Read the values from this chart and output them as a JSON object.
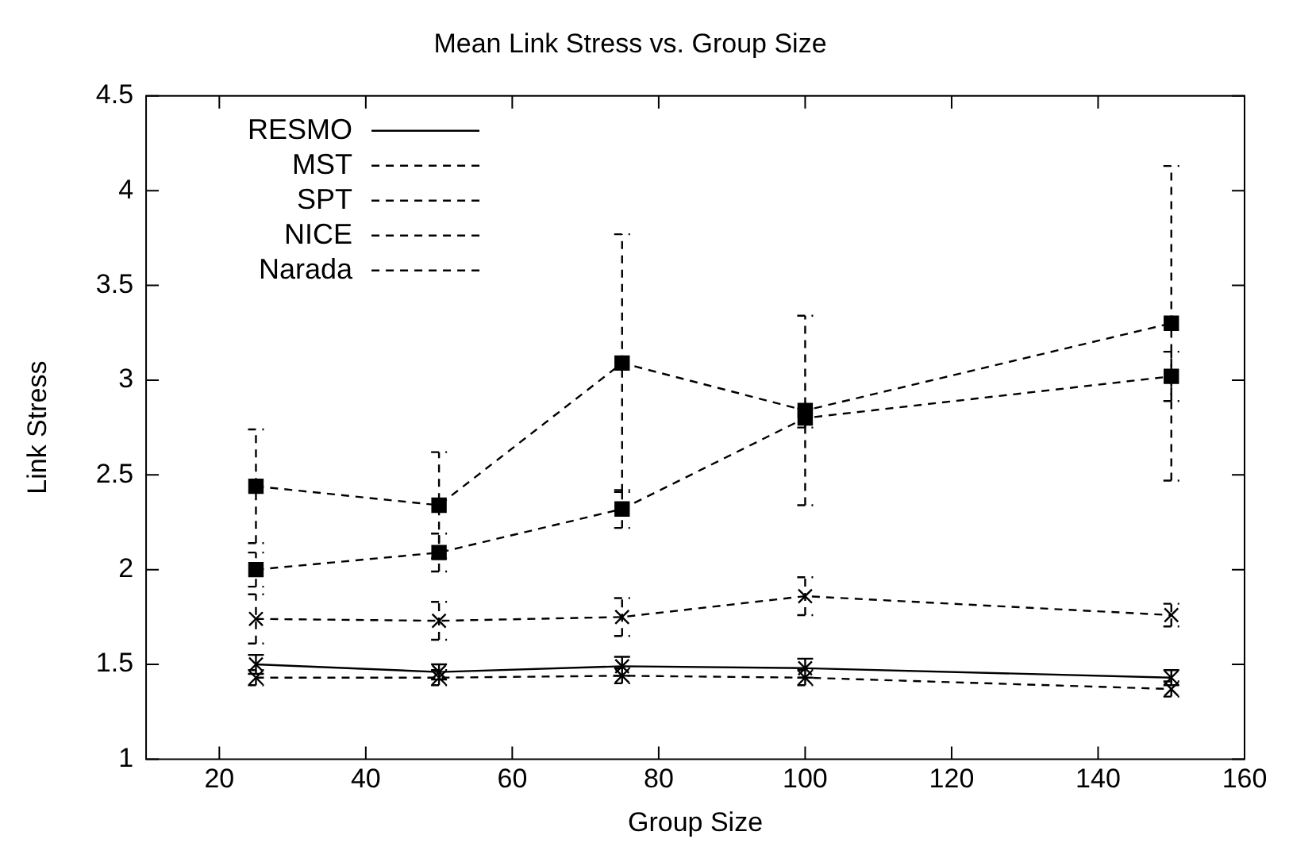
{
  "chart_data": {
    "type": "line",
    "title": "Mean Link Stress vs. Group Size",
    "xlabel": "Group Size",
    "ylabel": "Link Stress",
    "x": [
      25,
      50,
      75,
      100,
      150
    ],
    "series": [
      {
        "name": "RESMO",
        "color": "#000000",
        "line_style": "solid",
        "marker": "cross",
        "values": [
          1.5,
          1.46,
          1.49,
          1.48,
          1.43
        ],
        "errors": [
          0.05,
          0.04,
          0.05,
          0.05,
          0.04
        ]
      },
      {
        "name": "MST",
        "color": "#000000",
        "line_style": "dashed",
        "marker": "cross",
        "values": [
          1.43,
          1.43,
          1.44,
          1.43,
          1.37
        ],
        "errors": [
          0.04,
          0.04,
          0.04,
          0.04,
          0.04
        ]
      },
      {
        "name": "SPT",
        "color": "#000000",
        "line_style": "dashed",
        "marker": "cross",
        "values": [
          1.74,
          1.73,
          1.75,
          1.86,
          1.76
        ],
        "errors": [
          0.13,
          0.1,
          0.1,
          0.1,
          0.06
        ]
      },
      {
        "name": "NICE",
        "color": "#000000",
        "line_style": "dashed",
        "marker": "square",
        "values": [
          2.44,
          2.34,
          3.09,
          2.84,
          3.3
        ],
        "errors": [
          0.3,
          0.28,
          0.68,
          0.5,
          0.83
        ]
      },
      {
        "name": "Narada",
        "color": "#000000",
        "line_style": "dashed",
        "marker": "square",
        "values": [
          2.0,
          2.09,
          2.32,
          2.8,
          3.02
        ],
        "errors": [
          0.09,
          0.1,
          0.1,
          0.05,
          0.13
        ]
      }
    ],
    "xlim": [
      10,
      160
    ],
    "xticks": [
      20,
      40,
      60,
      80,
      100,
      120,
      140,
      160
    ],
    "ylim": [
      1,
      4.5
    ],
    "yticks": [
      1,
      1.5,
      2,
      2.5,
      3,
      3.5,
      4,
      4.5
    ],
    "grid": false,
    "legend": "top left"
  }
}
